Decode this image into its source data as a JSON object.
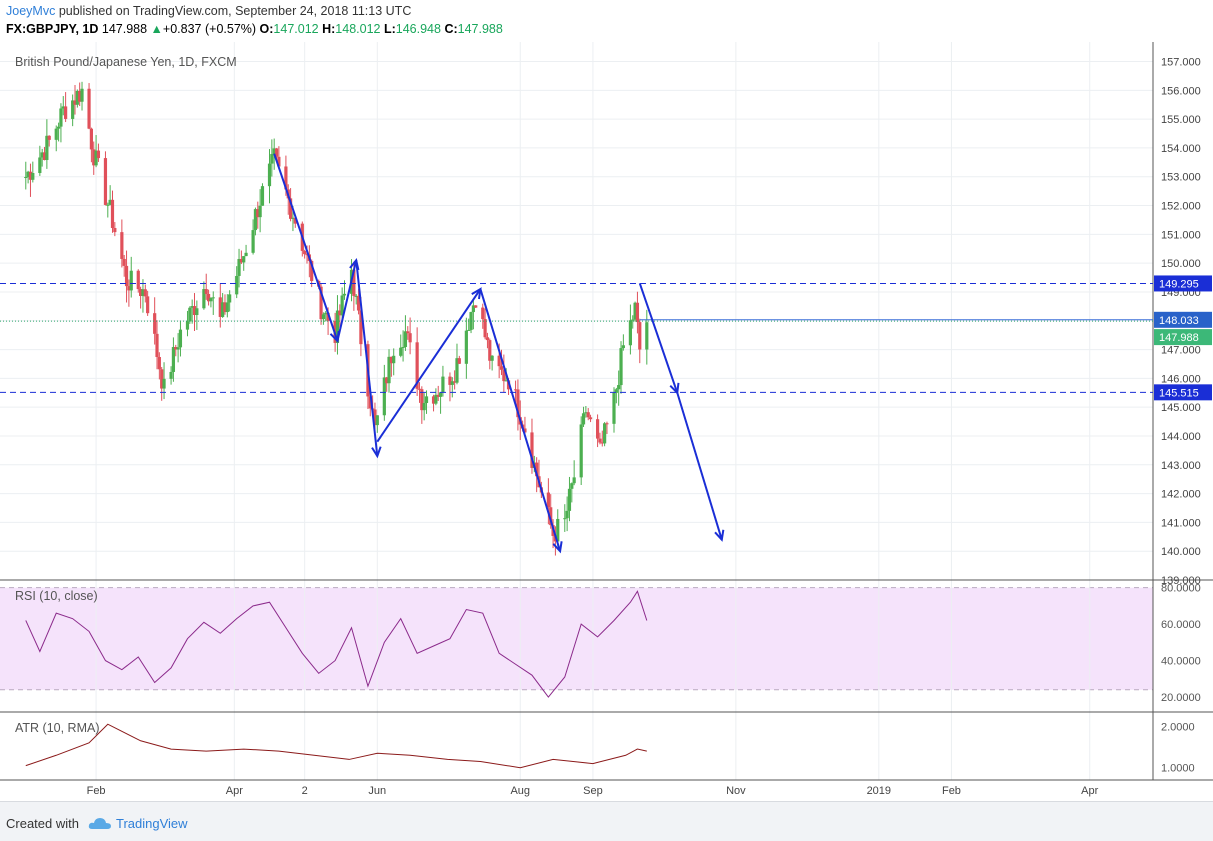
{
  "header": {
    "author": "JoeyMvc",
    "published_text": "published on TradingView.com, September 24, 2018 11:13 UTC",
    "symbol": "FX:GBPJPY, 1D",
    "last": "147.988",
    "change": "+0.837 (+0.57%)",
    "open_label": "O:",
    "open": "147.012",
    "high_label": "H:",
    "high": "148.012",
    "low_label": "L:",
    "low": "146.948",
    "close_label": "C:",
    "close": "147.988"
  },
  "footer": {
    "created_with": "Created with",
    "brand": "TradingView"
  },
  "colors": {
    "up": "#4caf50",
    "down": "#e0505a",
    "annotation": "#1a2ed6",
    "rsi": "#8b2a8b",
    "atr": "#8b1a1a",
    "accent": "#2f7fd8"
  },
  "chart_data": [
    {
      "type": "candlestick",
      "title": "British Pound/Japanese Yen, 1D, FXCM",
      "ylim": [
        139,
        157.4
      ],
      "y_ticks": [
        "157.000",
        "156.000",
        "155.000",
        "154.000",
        "153.000",
        "152.000",
        "151.000",
        "150.000",
        "149.000",
        "148.000",
        "147.000",
        "146.000",
        "145.000",
        "144.000",
        "143.000",
        "142.000",
        "141.000",
        "140.000",
        "139.000"
      ],
      "x_labels": [
        "Feb",
        "Apr",
        "2",
        "Jun",
        "Aug",
        "Sep",
        "Nov",
        "2019",
        "Feb",
        "Apr"
      ],
      "anchor_points": [
        {
          "date": "2018-01-02",
          "price": 153.0
        },
        {
          "date": "2018-01-12",
          "price": 154.2
        },
        {
          "date": "2018-01-18",
          "price": 155.3
        },
        {
          "date": "2018-01-26",
          "price": 156.0
        },
        {
          "date": "2018-01-31",
          "price": 153.8
        },
        {
          "date": "2018-02-08",
          "price": 151.5
        },
        {
          "date": "2018-02-14",
          "price": 149.4
        },
        {
          "date": "2018-02-22",
          "price": 149.0
        },
        {
          "date": "2018-03-02",
          "price": 145.6
        },
        {
          "date": "2018-03-09",
          "price": 147.6
        },
        {
          "date": "2018-03-20",
          "price": 149.3
        },
        {
          "date": "2018-03-26",
          "price": 148.0
        },
        {
          "date": "2018-04-05",
          "price": 150.3
        },
        {
          "date": "2018-04-12",
          "price": 152.2
        },
        {
          "date": "2018-04-18",
          "price": 153.6
        },
        {
          "date": "2018-04-27",
          "price": 151.5
        },
        {
          "date": "2018-05-08",
          "price": 148.5
        },
        {
          "date": "2018-05-14",
          "price": 147.6
        },
        {
          "date": "2018-05-21",
          "price": 149.8
        },
        {
          "date": "2018-05-25",
          "price": 147.4
        },
        {
          "date": "2018-05-31",
          "price": 144.2
        },
        {
          "date": "2018-06-08",
          "price": 147.2
        },
        {
          "date": "2018-06-13",
          "price": 147.6
        },
        {
          "date": "2018-06-20",
          "price": 145.3
        },
        {
          "date": "2018-06-27",
          "price": 145.6
        },
        {
          "date": "2018-07-04",
          "price": 146.3
        },
        {
          "date": "2018-07-13",
          "price": 148.9
        },
        {
          "date": "2018-07-20",
          "price": 146.4
        },
        {
          "date": "2018-07-27",
          "price": 146.0
        },
        {
          "date": "2018-08-03",
          "price": 144.3
        },
        {
          "date": "2018-08-10",
          "price": 142.0
        },
        {
          "date": "2018-08-15",
          "price": 140.6
        },
        {
          "date": "2018-08-20",
          "price": 141.0
        },
        {
          "date": "2018-08-24",
          "price": 142.6
        },
        {
          "date": "2018-08-29",
          "price": 144.9
        },
        {
          "date": "2018-09-04",
          "price": 143.4
        },
        {
          "date": "2018-09-10",
          "price": 145.2
        },
        {
          "date": "2018-09-14",
          "price": 147.1
        },
        {
          "date": "2018-09-19",
          "price": 148.4
        },
        {
          "date": "2018-09-21",
          "price": 147.0
        },
        {
          "date": "2018-09-24",
          "price": 148.0
        }
      ],
      "horizontal_levels": [
        {
          "price": 149.295,
          "label": "149.295",
          "style": "dashed-blue"
        },
        {
          "price": 148.033,
          "label": "148.033",
          "style": "solid-blue"
        },
        {
          "price": 147.988,
          "label": "147.988",
          "style": "last-price-green"
        },
        {
          "price": 145.515,
          "label": "145.515",
          "style": "dashed-blue"
        }
      ],
      "annotations": {
        "arrows": [
          {
            "from": {
              "date": "2018-04-18",
              "price": 153.8
            },
            "to": {
              "date": "2018-05-15",
              "price": 147.3
            }
          },
          {
            "from": {
              "date": "2018-05-15",
              "price": 147.3
            },
            "to": {
              "date": "2018-05-23",
              "price": 150.1
            }
          },
          {
            "from": {
              "date": "2018-05-23",
              "price": 150.1
            },
            "to": {
              "date": "2018-06-01",
              "price": 143.3
            }
          },
          {
            "from": {
              "date": "2018-06-01",
              "price": 143.8
            },
            "to": {
              "date": "2018-07-15",
              "price": 149.1
            }
          },
          {
            "from": {
              "date": "2018-07-15",
              "price": 149.1
            },
            "to": {
              "date": "2018-08-18",
              "price": 140.0
            }
          },
          {
            "from": {
              "date": "2018-09-21",
              "price": 149.3
            },
            "to": {
              "date": "2018-10-07",
              "price": 145.5
            }
          },
          {
            "from": {
              "date": "2018-10-07",
              "price": 145.5
            },
            "to": {
              "date": "2018-10-26",
              "price": 140.4
            }
          }
        ]
      }
    },
    {
      "type": "line",
      "title": "RSI (10, close)",
      "ylim": [
        14,
        82
      ],
      "y_ticks": [
        "80.0000",
        "60.0000",
        "40.0000",
        "20.0000"
      ],
      "band": [
        24,
        80
      ],
      "points": [
        {
          "date": "2018-01-02",
          "value": 62
        },
        {
          "date": "2018-01-08",
          "value": 45
        },
        {
          "date": "2018-01-15",
          "value": 66
        },
        {
          "date": "2018-01-22",
          "value": 63
        },
        {
          "date": "2018-01-29",
          "value": 56
        },
        {
          "date": "2018-02-05",
          "value": 40
        },
        {
          "date": "2018-02-12",
          "value": 35
        },
        {
          "date": "2018-02-19",
          "value": 42
        },
        {
          "date": "2018-02-26",
          "value": 28
        },
        {
          "date": "2018-03-05",
          "value": 36
        },
        {
          "date": "2018-03-12",
          "value": 52
        },
        {
          "date": "2018-03-19",
          "value": 61
        },
        {
          "date": "2018-03-26",
          "value": 55
        },
        {
          "date": "2018-04-02",
          "value": 63
        },
        {
          "date": "2018-04-09",
          "value": 70
        },
        {
          "date": "2018-04-16",
          "value": 72
        },
        {
          "date": "2018-04-23",
          "value": 58
        },
        {
          "date": "2018-04-30",
          "value": 44
        },
        {
          "date": "2018-05-07",
          "value": 33
        },
        {
          "date": "2018-05-14",
          "value": 40
        },
        {
          "date": "2018-05-21",
          "value": 58
        },
        {
          "date": "2018-05-28",
          "value": 26
        },
        {
          "date": "2018-06-04",
          "value": 50
        },
        {
          "date": "2018-06-11",
          "value": 63
        },
        {
          "date": "2018-06-18",
          "value": 44
        },
        {
          "date": "2018-06-25",
          "value": 48
        },
        {
          "date": "2018-07-02",
          "value": 52
        },
        {
          "date": "2018-07-09",
          "value": 68
        },
        {
          "date": "2018-07-16",
          "value": 66
        },
        {
          "date": "2018-07-23",
          "value": 44
        },
        {
          "date": "2018-07-30",
          "value": 38
        },
        {
          "date": "2018-08-06",
          "value": 32
        },
        {
          "date": "2018-08-13",
          "value": 20
        },
        {
          "date": "2018-08-20",
          "value": 31
        },
        {
          "date": "2018-08-27",
          "value": 60
        },
        {
          "date": "2018-09-03",
          "value": 53
        },
        {
          "date": "2018-09-10",
          "value": 62
        },
        {
          "date": "2018-09-17",
          "value": 72
        },
        {
          "date": "2018-09-20",
          "value": 78
        },
        {
          "date": "2018-09-24",
          "value": 62
        }
      ]
    },
    {
      "type": "line",
      "title": "ATR (10, RMA)",
      "ylim": [
        0.8,
        2.2
      ],
      "y_ticks": [
        "2.0000",
        "1.0000"
      ],
      "points": [
        {
          "date": "2018-01-02",
          "value": 1.05
        },
        {
          "date": "2018-01-15",
          "value": 1.3
        },
        {
          "date": "2018-01-29",
          "value": 1.6
        },
        {
          "date": "2018-02-06",
          "value": 2.05
        },
        {
          "date": "2018-02-20",
          "value": 1.65
        },
        {
          "date": "2018-03-05",
          "value": 1.45
        },
        {
          "date": "2018-03-20",
          "value": 1.4
        },
        {
          "date": "2018-04-05",
          "value": 1.45
        },
        {
          "date": "2018-04-20",
          "value": 1.4
        },
        {
          "date": "2018-05-05",
          "value": 1.3
        },
        {
          "date": "2018-05-20",
          "value": 1.2
        },
        {
          "date": "2018-06-01",
          "value": 1.35
        },
        {
          "date": "2018-06-15",
          "value": 1.3
        },
        {
          "date": "2018-07-01",
          "value": 1.2
        },
        {
          "date": "2018-07-15",
          "value": 1.15
        },
        {
          "date": "2018-08-01",
          "value": 1.0
        },
        {
          "date": "2018-08-15",
          "value": 1.2
        },
        {
          "date": "2018-09-01",
          "value": 1.1
        },
        {
          "date": "2018-09-15",
          "value": 1.3
        },
        {
          "date": "2018-09-20",
          "value": 1.45
        },
        {
          "date": "2018-09-24",
          "value": 1.4
        }
      ]
    }
  ]
}
